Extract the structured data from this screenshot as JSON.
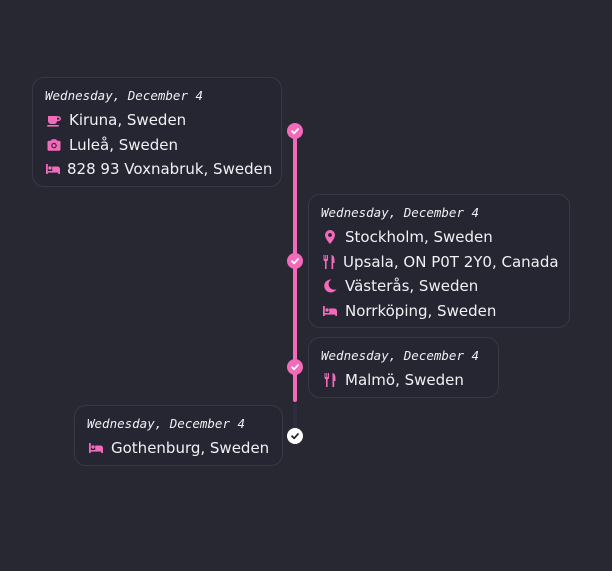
{
  "accent_color": "#f36aba",
  "background_color": "#272832",
  "timeline": [
    {
      "date": "Wednesday, December 4",
      "items": [
        {
          "icon": "coffee-icon",
          "place": "Kiruna, Sweden"
        },
        {
          "icon": "camera-icon",
          "place": "Luleå, Sweden"
        },
        {
          "icon": "bed-icon",
          "place": "828 93 Voxnabruk, Sweden"
        }
      ]
    },
    {
      "date": "Wednesday, December 4",
      "items": [
        {
          "icon": "map-pin-icon",
          "place": "Stockholm, Sweden"
        },
        {
          "icon": "utensils-icon",
          "place": "Upsala, ON P0T 2Y0, Canada"
        },
        {
          "icon": "moon-icon",
          "place": "Västerås, Sweden"
        },
        {
          "icon": "bed-icon",
          "place": "Norrköping, Sweden"
        }
      ]
    },
    {
      "date": "Wednesday, December 4",
      "items": [
        {
          "icon": "utensils-icon",
          "place": "Malmö, Sweden"
        }
      ]
    },
    {
      "date": "Wednesday, December 4",
      "items": [
        {
          "icon": "bed-icon",
          "place": "Gothenburg, Sweden"
        }
      ]
    }
  ]
}
